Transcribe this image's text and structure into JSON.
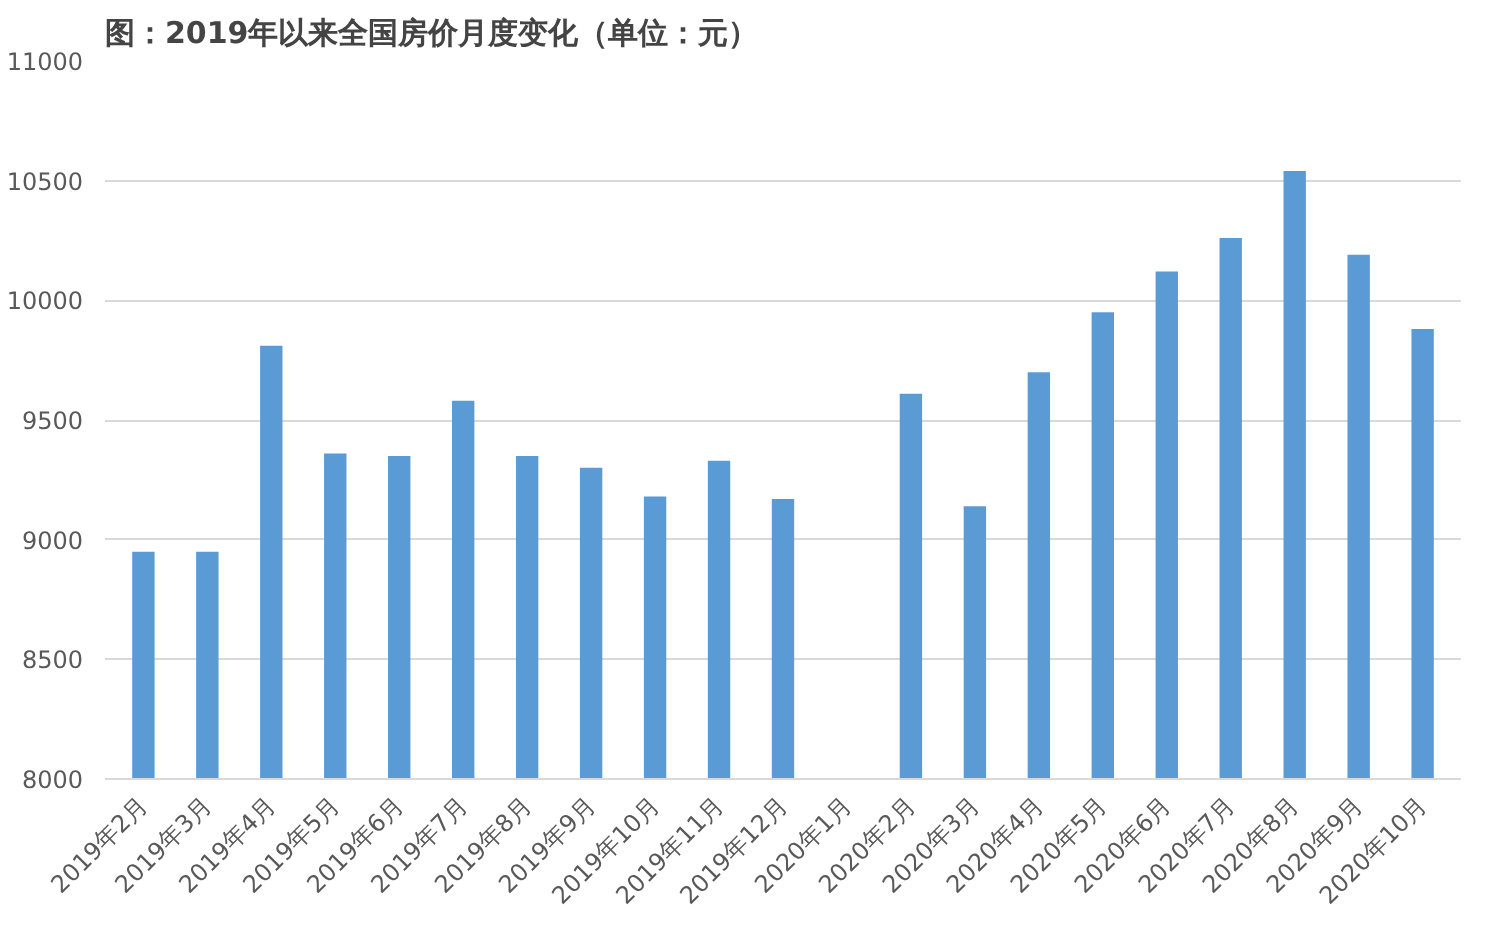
{
  "chart_data": {
    "type": "bar",
    "title": "图：2019年以来全国房价月度变化（单位：元）",
    "categories": [
      "2019年2月",
      "2019年3月",
      "2019年4月",
      "2019年5月",
      "2019年6月",
      "2019年7月",
      "2019年8月",
      "2019年9月",
      "2019年10月",
      "2019年11月",
      "2019年12月",
      "2020年1月",
      "2020年2月",
      "2020年3月",
      "2020年4月",
      "2020年5月",
      "2020年6月",
      "2020年7月",
      "2020年8月",
      "2020年9月",
      "2020年10月"
    ],
    "values": [
      8950,
      8950,
      9810,
      9360,
      9350,
      9580,
      9350,
      9300,
      9180,
      9330,
      9170,
      null,
      9610,
      9140,
      9700,
      9950,
      10120,
      10260,
      10540,
      10190,
      9880
    ],
    "color": "#5b9bd5",
    "ylim": [
      8000,
      11000
    ],
    "yticks": [
      8000,
      8500,
      9000,
      9500,
      10000,
      10500,
      11000
    ],
    "grid": "y"
  }
}
